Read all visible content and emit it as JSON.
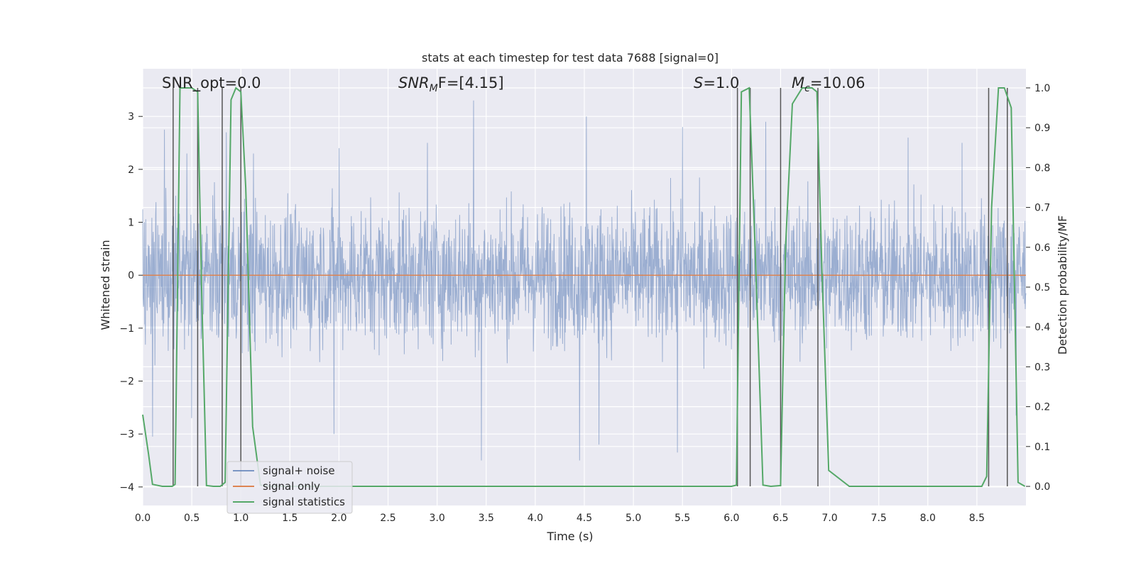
{
  "colors": {
    "plot_bg": "#eaeaf2",
    "grid": "#ffffff",
    "noise": "#4c72b0",
    "signal_only": "#dd8452",
    "statistics": "#55a868",
    "vlines": "#555555",
    "text": "#262626"
  },
  "chart_data": {
    "type": "line",
    "title": "stats at each timestep for test data 7688 [signal=0]",
    "xlabel": "Time (s)",
    "ylabel": "Whitened strain",
    "y2label": "Detection probability/MF",
    "xlim": [
      0,
      9
    ],
    "ylim": [
      -4.35,
      3.9
    ],
    "y2lim": [
      -0.048,
      1.048
    ],
    "grid": true,
    "legend_position": "lower-left",
    "x_ticks": [
      "0.0",
      "0.5",
      "1.0",
      "1.5",
      "2.0",
      "2.5",
      "3.0",
      "3.5",
      "4.0",
      "4.5",
      "5.0",
      "5.5",
      "6.0",
      "6.5",
      "7.0",
      "7.5",
      "8.0",
      "8.5"
    ],
    "y_ticks": [
      "3",
      "2",
      "1",
      "0",
      "−1",
      "−2",
      "−3",
      "−4"
    ],
    "y2_ticks": [
      "1.0",
      "0.9",
      "0.8",
      "0.7",
      "0.6",
      "0.5",
      "0.4",
      "0.3",
      "0.2",
      "0.1",
      "0.0"
    ],
    "annotations": {
      "snr_opt": "SNR_opt=0.0",
      "snr_mf_label": "SNR",
      "snr_mf_sub": "M",
      "snr_mf_rest": "F=[4.15]",
      "s_label": "S",
      "s_rest": "=1.0",
      "mc_label": "M",
      "mc_sub": "c",
      "mc_rest": "=10.06"
    },
    "legend": [
      "signal+ noise",
      "signal only",
      "signal statistics"
    ],
    "series": [
      {
        "name": "signal+ noise",
        "axis": "left",
        "style": "dense noise trace",
        "x_range": [
          0,
          9
        ],
        "approx_amplitude": 1.6,
        "peaks": [
          [
            1.13,
            2.3
          ],
          [
            3.37,
            3.3
          ],
          [
            4.52,
            3.0
          ],
          [
            6.35,
            2.9
          ],
          [
            5.5,
            2.8
          ],
          [
            0.22,
            2.75
          ],
          [
            0.45,
            2.3
          ],
          [
            0.85,
            2.7
          ],
          [
            7.8,
            2.6
          ],
          [
            8.35,
            2.5
          ],
          [
            2.0,
            2.4
          ],
          [
            2.9,
            2.5
          ]
        ],
        "troughs": [
          [
            3.45,
            -3.5
          ],
          [
            4.45,
            -3.5
          ],
          [
            1.95,
            -3.0
          ],
          [
            0.1,
            -3.05
          ],
          [
            6.5,
            -3.15
          ],
          [
            5.45,
            -3.35
          ],
          [
            0.5,
            -2.7
          ],
          [
            4.65,
            -3.2
          ],
          [
            8.9,
            -2.65
          ]
        ]
      },
      {
        "name": "signal only",
        "axis": "left",
        "x": [
          0,
          9
        ],
        "y": [
          0,
          0
        ]
      },
      {
        "name": "signal statistics",
        "axis": "right",
        "x": [
          0.0,
          0.06,
          0.1,
          0.2,
          0.3,
          0.33,
          0.38,
          0.43,
          0.5,
          0.56,
          0.6,
          0.65,
          0.72,
          0.79,
          0.84,
          0.9,
          0.95,
          1.0,
          1.05,
          1.12,
          1.2,
          1.3,
          6.0,
          6.05,
          6.1,
          6.18,
          6.24,
          6.32,
          6.4,
          6.5,
          6.55,
          6.62,
          6.72,
          6.82,
          6.87,
          6.92,
          6.99,
          7.2,
          8.55,
          8.6,
          8.65,
          8.72,
          8.78,
          8.85,
          8.92,
          8.99
        ],
        "y": [
          0.18,
          0.08,
          0.005,
          0.0,
          0.0,
          0.005,
          1.0,
          1.0,
          1.0,
          0.99,
          0.5,
          0.002,
          0.0,
          0.0,
          0.01,
          0.97,
          1.0,
          0.99,
          0.75,
          0.15,
          0.003,
          0.0,
          0.0,
          0.003,
          0.99,
          1.0,
          0.6,
          0.003,
          0.0,
          0.002,
          0.6,
          0.96,
          1.0,
          1.0,
          0.99,
          0.55,
          0.04,
          0.0,
          0.0,
          0.025,
          0.7,
          1.0,
          1.0,
          0.95,
          0.01,
          0.0
        ]
      }
    ],
    "vertical_lines": [
      0.31,
      0.56,
      0.81,
      1.0,
      6.06,
      6.19,
      6.5,
      6.88,
      8.62,
      8.81
    ]
  }
}
